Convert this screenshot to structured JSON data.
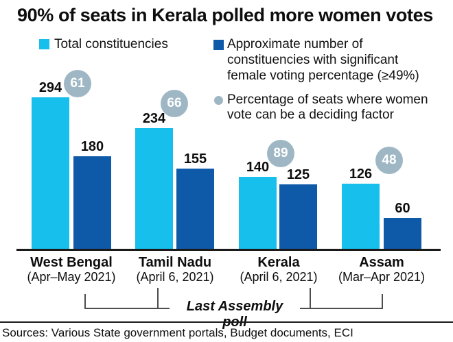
{
  "title": "90% of seats in Kerala polled more women votes",
  "legend": {
    "total": "Total constituencies",
    "significant": "Approximate number of constituencies with significant female voting percentage (≥49%)",
    "badge": "Percentage of seats where women vote can be a deciding factor"
  },
  "colors": {
    "total": "#17BFEC",
    "significant": "#0F59A9",
    "badge": "#9FB7C5",
    "text": "#0d0d0d"
  },
  "annotation": "Last Assembly poll",
  "source": "Sources: Various State government portals, Budget documents, ECI",
  "chart_data": {
    "type": "bar",
    "title": "90% of seats in Kerala polled more women votes",
    "categories": [
      "West Bengal",
      "Tamil Nadu",
      "Kerala",
      "Assam"
    ],
    "category_dates": [
      "(Apr–May 2021)",
      "(April 6, 2021)",
      "(April 6, 2021)",
      "(Mar–Apr 2021)"
    ],
    "series": [
      {
        "name": "Total constituencies",
        "color": "#17BFEC",
        "values": [
          294,
          234,
          140,
          126
        ]
      },
      {
        "name": "Approximate number of constituencies with significant female voting percentage (≥49%)",
        "color": "#0F59A9",
        "values": [
          180,
          155,
          125,
          60
        ]
      }
    ],
    "badges": {
      "name": "Percentage of seats where women vote can be a deciding factor",
      "color": "#9FB7C5",
      "values": [
        61,
        66,
        89,
        48
      ]
    },
    "annotation": "Last Assembly poll",
    "source": "Sources: Various State government portals, Budget documents, ECI",
    "ylim": [
      0,
      300
    ],
    "grid": false,
    "legend_position": "top",
    "value_labels": true
  }
}
